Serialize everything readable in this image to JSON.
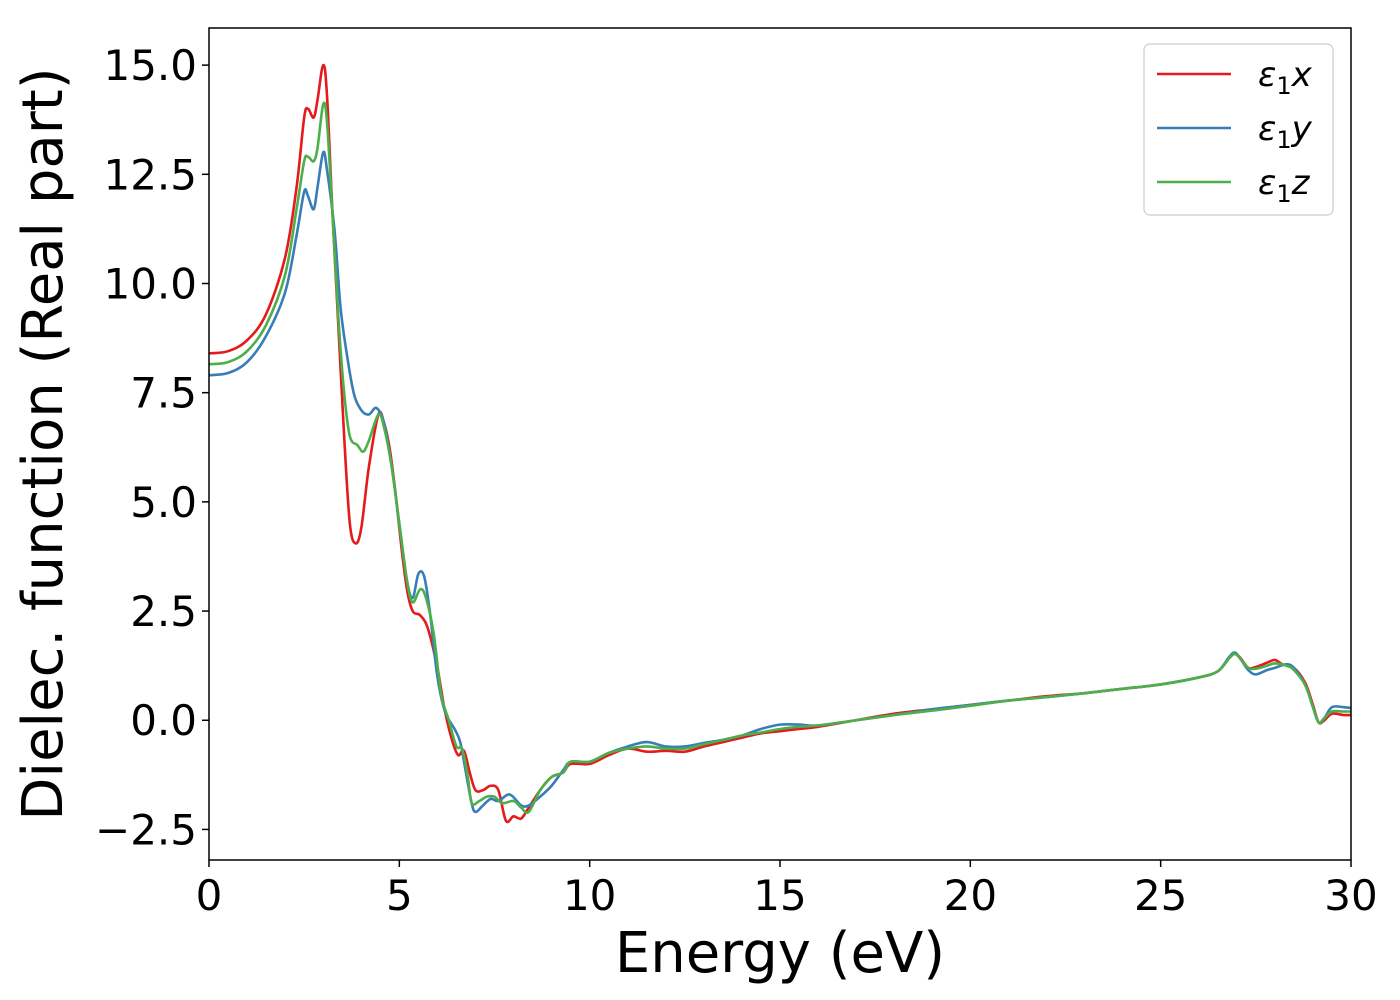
{
  "chart_data": {
    "type": "line",
    "xlabel": "Energy (eV)",
    "ylabel": "Dielec. function (Real part)",
    "xlim": [
      0,
      30
    ],
    "ylim": [
      -3.2,
      15.85
    ],
    "xticks": [
      0,
      5,
      10,
      15,
      20,
      25,
      30
    ],
    "xtick_labels": [
      "0",
      "5",
      "10",
      "15",
      "20",
      "25",
      "30"
    ],
    "yticks": [
      -2.5,
      0.0,
      2.5,
      5.0,
      7.5,
      10.0,
      12.5,
      15.0
    ],
    "ytick_labels": [
      "−2.5",
      "0.0",
      "2.5",
      "5.0",
      "7.5",
      "10.0",
      "12.5",
      "15.0"
    ],
    "grid": false,
    "legend": {
      "position": "top-right"
    },
    "series": [
      {
        "name": "ε₁x",
        "name_base": "ε",
        "name_sub": "1",
        "name_suffix": "x",
        "color": "#e41a1c",
        "points": [
          [
            0,
            8.4
          ],
          [
            0.5,
            8.45
          ],
          [
            1.0,
            8.7
          ],
          [
            1.5,
            9.3
          ],
          [
            2.0,
            10.6
          ],
          [
            2.3,
            12.2
          ],
          [
            2.5,
            13.8
          ],
          [
            2.6,
            14.0
          ],
          [
            2.75,
            13.8
          ],
          [
            2.85,
            14.2
          ],
          [
            3.0,
            15.0
          ],
          [
            3.1,
            14.3
          ],
          [
            3.25,
            11.5
          ],
          [
            3.4,
            9.0
          ],
          [
            3.55,
            6.5
          ],
          [
            3.7,
            4.5
          ],
          [
            3.85,
            4.05
          ],
          [
            4.0,
            4.4
          ],
          [
            4.2,
            5.8
          ],
          [
            4.45,
            7.0
          ],
          [
            4.6,
            6.8
          ],
          [
            4.75,
            6.2
          ],
          [
            4.9,
            5.2
          ],
          [
            5.05,
            4.0
          ],
          [
            5.2,
            3.0
          ],
          [
            5.35,
            2.5
          ],
          [
            5.55,
            2.4
          ],
          [
            5.75,
            2.1
          ],
          [
            6.0,
            1.2
          ],
          [
            6.2,
            0.2
          ],
          [
            6.4,
            -0.5
          ],
          [
            6.55,
            -0.8
          ],
          [
            6.7,
            -0.7
          ],
          [
            6.85,
            -1.2
          ],
          [
            7.0,
            -1.6
          ],
          [
            7.2,
            -1.6
          ],
          [
            7.4,
            -1.5
          ],
          [
            7.6,
            -1.6
          ],
          [
            7.8,
            -2.3
          ],
          [
            8.0,
            -2.2
          ],
          [
            8.2,
            -2.25
          ],
          [
            8.4,
            -2.0
          ],
          [
            8.7,
            -1.6
          ],
          [
            9.0,
            -1.3
          ],
          [
            9.3,
            -1.2
          ],
          [
            9.5,
            -1.0
          ],
          [
            10.0,
            -1.0
          ],
          [
            10.5,
            -0.8
          ],
          [
            11.0,
            -0.65
          ],
          [
            11.5,
            -0.72
          ],
          [
            12.0,
            -0.7
          ],
          [
            12.5,
            -0.72
          ],
          [
            13.0,
            -0.6
          ],
          [
            13.5,
            -0.5
          ],
          [
            14.0,
            -0.4
          ],
          [
            14.5,
            -0.3
          ],
          [
            15.0,
            -0.25
          ],
          [
            15.5,
            -0.2
          ],
          [
            16.0,
            -0.15
          ],
          [
            17.0,
            0.0
          ],
          [
            18.0,
            0.15
          ],
          [
            19.0,
            0.25
          ],
          [
            20.0,
            0.35
          ],
          [
            21.0,
            0.45
          ],
          [
            22.0,
            0.55
          ],
          [
            23.0,
            0.62
          ],
          [
            24.0,
            0.72
          ],
          [
            25.0,
            0.82
          ],
          [
            26.0,
            0.98
          ],
          [
            26.5,
            1.12
          ],
          [
            26.8,
            1.42
          ],
          [
            26.95,
            1.52
          ],
          [
            27.1,
            1.42
          ],
          [
            27.3,
            1.2
          ],
          [
            27.5,
            1.22
          ],
          [
            27.8,
            1.32
          ],
          [
            28.0,
            1.38
          ],
          [
            28.2,
            1.28
          ],
          [
            28.5,
            1.2
          ],
          [
            28.8,
            0.85
          ],
          [
            29.0,
            0.35
          ],
          [
            29.15,
            -0.05
          ],
          [
            29.3,
            0.0
          ],
          [
            29.5,
            0.15
          ],
          [
            29.8,
            0.12
          ],
          [
            30.0,
            0.12
          ]
        ]
      },
      {
        "name": "ε₁y",
        "name_base": "ε",
        "name_sub": "1",
        "name_suffix": "y",
        "color": "#377eb8",
        "points": [
          [
            0,
            7.9
          ],
          [
            0.5,
            7.95
          ],
          [
            1.0,
            8.2
          ],
          [
            1.5,
            8.8
          ],
          [
            2.0,
            9.8
          ],
          [
            2.3,
            11.1
          ],
          [
            2.5,
            12.1
          ],
          [
            2.6,
            12.0
          ],
          [
            2.75,
            11.7
          ],
          [
            2.85,
            12.2
          ],
          [
            3.0,
            13.0
          ],
          [
            3.1,
            12.6
          ],
          [
            3.3,
            11.2
          ],
          [
            3.45,
            9.5
          ],
          [
            3.6,
            8.5
          ],
          [
            3.8,
            7.5
          ],
          [
            4.0,
            7.1
          ],
          [
            4.2,
            7.0
          ],
          [
            4.4,
            7.15
          ],
          [
            4.6,
            6.8
          ],
          [
            4.8,
            5.8
          ],
          [
            5.0,
            4.5
          ],
          [
            5.2,
            3.2
          ],
          [
            5.35,
            2.8
          ],
          [
            5.5,
            3.35
          ],
          [
            5.65,
            3.3
          ],
          [
            5.8,
            2.5
          ],
          [
            6.0,
            1.0
          ],
          [
            6.2,
            0.2
          ],
          [
            6.45,
            -0.2
          ],
          [
            6.6,
            -0.5
          ],
          [
            6.75,
            -1.2
          ],
          [
            6.9,
            -1.9
          ],
          [
            7.0,
            -2.1
          ],
          [
            7.2,
            -1.95
          ],
          [
            7.4,
            -1.8
          ],
          [
            7.6,
            -1.85
          ],
          [
            7.9,
            -1.7
          ],
          [
            8.2,
            -1.95
          ],
          [
            8.4,
            -1.95
          ],
          [
            8.7,
            -1.75
          ],
          [
            9.0,
            -1.5
          ],
          [
            9.3,
            -1.15
          ],
          [
            9.5,
            -0.95
          ],
          [
            10.0,
            -0.95
          ],
          [
            10.5,
            -0.75
          ],
          [
            11.0,
            -0.6
          ],
          [
            11.5,
            -0.5
          ],
          [
            12.0,
            -0.6
          ],
          [
            12.5,
            -0.6
          ],
          [
            13.0,
            -0.52
          ],
          [
            13.5,
            -0.45
          ],
          [
            14.0,
            -0.35
          ],
          [
            14.5,
            -0.2
          ],
          [
            15.0,
            -0.1
          ],
          [
            15.5,
            -0.1
          ],
          [
            16.0,
            -0.12
          ],
          [
            17.0,
            0.0
          ],
          [
            18.0,
            0.12
          ],
          [
            19.0,
            0.25
          ],
          [
            20.0,
            0.35
          ],
          [
            21.0,
            0.45
          ],
          [
            22.0,
            0.53
          ],
          [
            23.0,
            0.62
          ],
          [
            24.0,
            0.72
          ],
          [
            25.0,
            0.82
          ],
          [
            26.0,
            0.98
          ],
          [
            26.5,
            1.12
          ],
          [
            26.8,
            1.45
          ],
          [
            26.95,
            1.55
          ],
          [
            27.1,
            1.4
          ],
          [
            27.3,
            1.15
          ],
          [
            27.5,
            1.05
          ],
          [
            27.8,
            1.15
          ],
          [
            28.0,
            1.2
          ],
          [
            28.3,
            1.28
          ],
          [
            28.5,
            1.2
          ],
          [
            28.8,
            0.8
          ],
          [
            29.0,
            0.3
          ],
          [
            29.15,
            -0.05
          ],
          [
            29.3,
            0.05
          ],
          [
            29.5,
            0.3
          ],
          [
            29.8,
            0.3
          ],
          [
            30.0,
            0.28
          ]
        ]
      },
      {
        "name": "ε₁z",
        "name_base": "ε",
        "name_sub": "1",
        "name_suffix": "z",
        "color": "#4daf4a",
        "points": [
          [
            0,
            8.15
          ],
          [
            0.5,
            8.2
          ],
          [
            1.0,
            8.45
          ],
          [
            1.5,
            9.05
          ],
          [
            2.0,
            10.2
          ],
          [
            2.3,
            11.7
          ],
          [
            2.5,
            12.8
          ],
          [
            2.6,
            12.9
          ],
          [
            2.75,
            12.8
          ],
          [
            2.85,
            13.1
          ],
          [
            3.0,
            14.1
          ],
          [
            3.1,
            13.7
          ],
          [
            3.25,
            11.5
          ],
          [
            3.4,
            9.2
          ],
          [
            3.55,
            7.5
          ],
          [
            3.7,
            6.5
          ],
          [
            3.9,
            6.3
          ],
          [
            4.05,
            6.15
          ],
          [
            4.2,
            6.4
          ],
          [
            4.45,
            7.0
          ],
          [
            4.6,
            6.7
          ],
          [
            4.8,
            5.8
          ],
          [
            5.0,
            4.5
          ],
          [
            5.2,
            3.2
          ],
          [
            5.35,
            2.7
          ],
          [
            5.55,
            3.0
          ],
          [
            5.7,
            2.8
          ],
          [
            5.9,
            2.0
          ],
          [
            6.1,
            0.6
          ],
          [
            6.3,
            0.0
          ],
          [
            6.5,
            -0.6
          ],
          [
            6.65,
            -0.65
          ],
          [
            6.8,
            -1.3
          ],
          [
            6.9,
            -1.9
          ],
          [
            7.1,
            -1.85
          ],
          [
            7.3,
            -1.75
          ],
          [
            7.5,
            -1.75
          ],
          [
            7.7,
            -1.9
          ],
          [
            8.0,
            -1.85
          ],
          [
            8.2,
            -2.0
          ],
          [
            8.4,
            -2.1
          ],
          [
            8.7,
            -1.6
          ],
          [
            9.0,
            -1.3
          ],
          [
            9.3,
            -1.2
          ],
          [
            9.5,
            -0.95
          ],
          [
            10.0,
            -0.95
          ],
          [
            10.5,
            -0.75
          ],
          [
            11.0,
            -0.65
          ],
          [
            11.5,
            -0.6
          ],
          [
            12.0,
            -0.65
          ],
          [
            12.5,
            -0.65
          ],
          [
            13.0,
            -0.55
          ],
          [
            13.5,
            -0.45
          ],
          [
            14.0,
            -0.35
          ],
          [
            14.5,
            -0.28
          ],
          [
            15.0,
            -0.2
          ],
          [
            15.5,
            -0.15
          ],
          [
            16.0,
            -0.12
          ],
          [
            17.0,
            0.0
          ],
          [
            18.0,
            0.12
          ],
          [
            19.0,
            0.22
          ],
          [
            20.0,
            0.33
          ],
          [
            21.0,
            0.45
          ],
          [
            22.0,
            0.53
          ],
          [
            23.0,
            0.62
          ],
          [
            24.0,
            0.72
          ],
          [
            25.0,
            0.82
          ],
          [
            26.0,
            0.98
          ],
          [
            26.5,
            1.12
          ],
          [
            26.8,
            1.42
          ],
          [
            26.95,
            1.52
          ],
          [
            27.1,
            1.4
          ],
          [
            27.3,
            1.2
          ],
          [
            27.5,
            1.18
          ],
          [
            27.8,
            1.25
          ],
          [
            28.0,
            1.3
          ],
          [
            28.3,
            1.25
          ],
          [
            28.5,
            1.15
          ],
          [
            28.8,
            0.8
          ],
          [
            29.0,
            0.3
          ],
          [
            29.15,
            -0.05
          ],
          [
            29.3,
            0.05
          ],
          [
            29.5,
            0.2
          ],
          [
            29.8,
            0.2
          ],
          [
            30.0,
            0.2
          ]
        ]
      }
    ]
  }
}
